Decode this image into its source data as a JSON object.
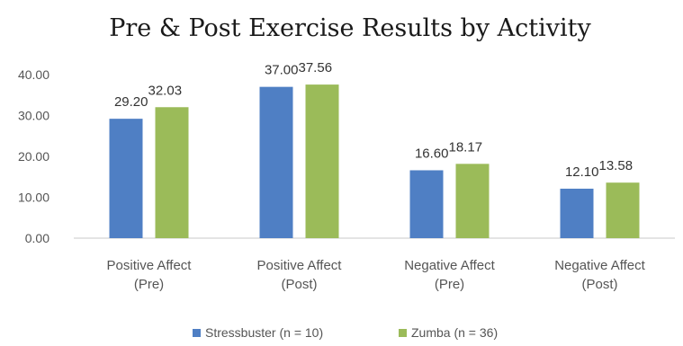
{
  "colors": {
    "stressbuster": "#4f7fc4",
    "zumba": "#9bbb59",
    "axis": "#c8c8c8"
  },
  "chart_data": {
    "type": "bar",
    "title": "Pre & Post Exercise Results by Activity",
    "xlabel": "",
    "ylabel": "",
    "ylim": [
      0,
      40
    ],
    "yticks": [
      "0.00",
      "10.00",
      "20.00",
      "30.00",
      "40.00"
    ],
    "categories": [
      [
        "Positive Affect",
        "(Pre)"
      ],
      [
        "Positive Affect",
        "(Post)"
      ],
      [
        "Negative Affect",
        "(Pre)"
      ],
      [
        "Negative Affect",
        "(Post)"
      ]
    ],
    "series": [
      {
        "name": "Stressbuster (n = 10)",
        "values": [
          29.2,
          37.0,
          16.6,
          12.1
        ],
        "labels": [
          "29.20",
          "37.00",
          "16.60",
          "12.10"
        ]
      },
      {
        "name": "Zumba (n = 36)",
        "values": [
          32.03,
          37.56,
          18.17,
          13.58
        ],
        "labels": [
          "32.03",
          "37.56",
          "18.17",
          "13.58"
        ]
      }
    ],
    "grid": false,
    "legend": "bottom"
  }
}
